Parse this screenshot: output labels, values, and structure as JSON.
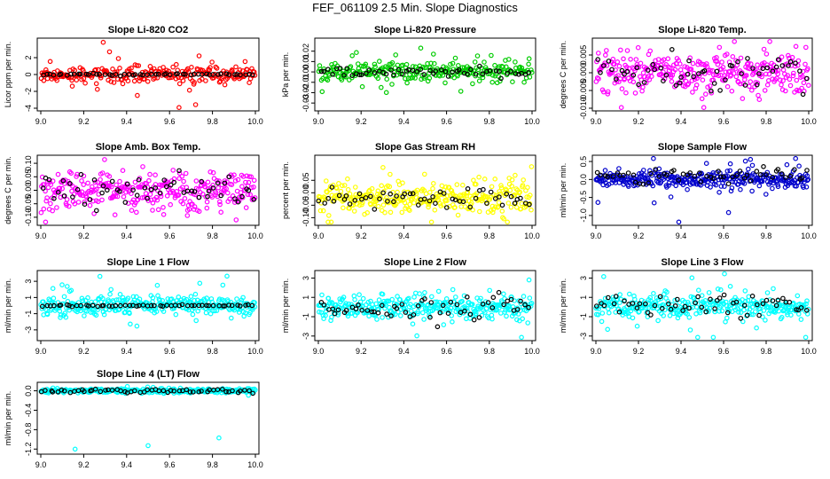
{
  "page_title": "FEF_061109  2.5 Min. Slope Diagnostics",
  "chart_data": [
    {
      "type": "scatter",
      "title": "Slope Li-820 CO2",
      "ylabel": "Licor ppm per min.",
      "xlim": [
        9.0,
        10.0
      ],
      "ylim": [
        -4,
        4
      ],
      "xticks": [
        9.0,
        9.2,
        9.4,
        9.6,
        9.8,
        10.0
      ],
      "xticklabels": [
        "9.0",
        "9.2",
        "9.4",
        "9.6",
        "9.8",
        "10.0"
      ],
      "yticks": [
        -4,
        -2,
        0,
        2
      ],
      "yticklabels": [
        "-4",
        "-2",
        "0",
        "2"
      ],
      "series": [
        {
          "color": "#ff0000",
          "center": 0.0,
          "spread": 0.45,
          "outlier_spread": 1.8,
          "count": 260
        },
        {
          "color": "#000000",
          "center": 0.0,
          "spread": 0.04,
          "outlier_spread": 0.1,
          "count": 55
        }
      ]
    },
    {
      "type": "scatter",
      "title": "Slope Li-820 Pressure",
      "ylabel": "kPa per min.",
      "xlim": [
        9.0,
        10.0
      ],
      "ylim": [
        -0.035,
        0.03
      ],
      "xticks": [
        9.0,
        9.2,
        9.4,
        9.6,
        9.8,
        10.0
      ],
      "xticklabels": [
        "9.0",
        "9.2",
        "9.4",
        "9.6",
        "9.8",
        "10.0"
      ],
      "yticks": [
        -0.03,
        -0.02,
        -0.01,
        0.0,
        0.01,
        0.02
      ],
      "yticklabels": [
        "-0.03",
        "-0.02",
        "-0.01",
        "0.00",
        "0.01",
        "0.02"
      ],
      "series": [
        {
          "color": "#00cc00",
          "center": 0.0,
          "spread": 0.005,
          "outlier_spread": 0.012,
          "count": 260
        },
        {
          "color": "#000000",
          "center": 0.0,
          "spread": 0.002,
          "outlier_spread": 0.005,
          "count": 55
        }
      ]
    },
    {
      "type": "scatter",
      "title": "Slope Li-820 Temp.",
      "ylabel": "degrees C per min.",
      "xlim": [
        9.0,
        10.0
      ],
      "ylim": [
        -0.01,
        0.009
      ],
      "xticks": [
        9.0,
        9.2,
        9.4,
        9.6,
        9.8,
        10.0
      ],
      "xticklabels": [
        "9.0",
        "9.2",
        "9.4",
        "9.6",
        "9.8",
        "10.0"
      ],
      "yticks": [
        -0.01,
        -0.005,
        0.0,
        0.005
      ],
      "yticklabels": [
        "-0.010",
        "-0.005",
        "0.000",
        "0.005"
      ],
      "series": [
        {
          "color": "#ff00ff",
          "center": 0.0,
          "spread": 0.003,
          "outlier_spread": 0.005,
          "count": 320
        },
        {
          "color": "#000000",
          "center": 0.0,
          "spread": 0.0025,
          "outlier_spread": 0.004,
          "count": 55
        }
      ]
    },
    {
      "type": "scatter",
      "title": "Slope Amb. Box Temp.",
      "ylabel": "degrees C per min.",
      "xlim": [
        9.0,
        10.0
      ],
      "ylim": [
        -0.12,
        0.12
      ],
      "xticks": [
        9.0,
        9.2,
        9.4,
        9.6,
        9.8,
        10.0
      ],
      "xticklabels": [
        "9.0",
        "9.2",
        "9.4",
        "9.6",
        "9.8",
        "10.0"
      ],
      "yticks": [
        -0.1,
        -0.05,
        0.0,
        0.05,
        0.1
      ],
      "yticklabels": [
        "-0.10",
        "-0.05",
        "0.00",
        "0.05",
        "0.10"
      ],
      "series": [
        {
          "color": "#ff00ff",
          "center": 0.0,
          "spread": 0.035,
          "outlier_spread": 0.06,
          "count": 320
        },
        {
          "color": "#000000",
          "center": 0.0,
          "spread": 0.03,
          "outlier_spread": 0.05,
          "count": 55
        }
      ]
    },
    {
      "type": "scatter",
      "title": "Slope Gas Stream RH",
      "ylabel": "percent per min.",
      "xlim": [
        9.0,
        10.0
      ],
      "ylim": [
        -0.12,
        0.14
      ],
      "xticks": [
        9.0,
        9.2,
        9.4,
        9.6,
        9.8,
        10.0
      ],
      "xticklabels": [
        "9.0",
        "9.2",
        "9.4",
        "9.6",
        "9.8",
        "10.0"
      ],
      "yticks": [
        -0.1,
        -0.05,
        0.0,
        0.05
      ],
      "yticklabels": [
        "-0.10",
        "-0.05",
        "0.00",
        "0.05"
      ],
      "series": [
        {
          "color": "#ffff00",
          "center": -0.02,
          "spread": 0.03,
          "outlier_spread": 0.07,
          "count": 320
        },
        {
          "color": "#000000",
          "center": -0.02,
          "spread": 0.025,
          "outlier_spread": 0.05,
          "count": 55
        }
      ]
    },
    {
      "type": "scatter",
      "title": "Slope Sample Flow",
      "ylabel": "ml/min per min.",
      "xlim": [
        9.0,
        10.0
      ],
      "ylim": [
        -1.2,
        0.6
      ],
      "xticks": [
        9.0,
        9.2,
        9.4,
        9.6,
        9.8,
        10.0
      ],
      "xticklabels": [
        "9.0",
        "9.2",
        "9.4",
        "9.6",
        "9.8",
        "10.0"
      ],
      "yticks": [
        -1.0,
        -0.5,
        0.0,
        0.5
      ],
      "yticklabels": [
        "-1.0",
        "-0.5",
        "0.0",
        "0.5"
      ],
      "series": [
        {
          "color": "#0000cc",
          "center": 0.0,
          "spread": 0.1,
          "outlier_spread": 0.5,
          "count": 320
        },
        {
          "color": "#000000",
          "center": 0.1,
          "spread": 0.12,
          "outlier_spread": 0.2,
          "count": 55
        }
      ]
    },
    {
      "type": "scatter",
      "title": "Slope Line 1 Flow",
      "ylabel": "ml/min per min.",
      "xlim": [
        9.0,
        10.0
      ],
      "ylim": [
        -4,
        4
      ],
      "xticks": [
        9.0,
        9.2,
        9.4,
        9.6,
        9.8,
        10.0
      ],
      "xticklabels": [
        "9.0",
        "9.2",
        "9.4",
        "9.6",
        "9.8",
        "10.0"
      ],
      "yticks": [
        -3,
        -1,
        1,
        3
      ],
      "yticklabels": [
        "-3",
        "-1",
        "1",
        "3"
      ],
      "series": [
        {
          "color": "#00ffff",
          "center": 0.0,
          "spread": 0.6,
          "outlier_spread": 1.5,
          "count": 320
        },
        {
          "color": "#000000",
          "center": 0.0,
          "spread": 0.05,
          "outlier_spread": 0.1,
          "count": 55
        }
      ]
    },
    {
      "type": "scatter",
      "title": "Slope Line 2 Flow",
      "ylabel": "ml/min per min.",
      "xlim": [
        9.0,
        10.0
      ],
      "ylim": [
        -3.2,
        3.5
      ],
      "xticks": [
        9.0,
        9.2,
        9.4,
        9.6,
        9.8,
        10.0
      ],
      "xticklabels": [
        "9.0",
        "9.2",
        "9.4",
        "9.6",
        "9.8",
        "10.0"
      ],
      "yticks": [
        -3,
        -1,
        1,
        3
      ],
      "yticklabels": [
        "-3",
        "-1",
        "1",
        "3"
      ],
      "series": [
        {
          "color": "#00ffff",
          "center": 0.0,
          "spread": 0.6,
          "outlier_spread": 1.5,
          "count": 320
        },
        {
          "color": "#000000",
          "center": 0.0,
          "spread": 0.5,
          "outlier_spread": 1.0,
          "count": 55
        }
      ]
    },
    {
      "type": "scatter",
      "title": "Slope Line 3 Flow",
      "ylabel": "ml/min per min.",
      "xlim": [
        9.0,
        10.0
      ],
      "ylim": [
        -3.2,
        3.5
      ],
      "xticks": [
        9.0,
        9.2,
        9.4,
        9.6,
        9.8,
        10.0
      ],
      "xticklabels": [
        "9.0",
        "9.2",
        "9.4",
        "9.6",
        "9.8",
        "10.0"
      ],
      "yticks": [
        -3,
        -1,
        1,
        3
      ],
      "yticklabels": [
        "-3",
        "-1",
        "1",
        "3"
      ],
      "series": [
        {
          "color": "#00ffff",
          "center": 0.0,
          "spread": 0.6,
          "outlier_spread": 1.5,
          "count": 320
        },
        {
          "color": "#000000",
          "center": 0.1,
          "spread": 0.5,
          "outlier_spread": 1.0,
          "count": 55
        }
      ]
    },
    {
      "type": "scatter",
      "title": "Slope Line 4 (LT) Flow",
      "ylabel": "ml/min per min.",
      "xlim": [
        9.0,
        10.0
      ],
      "ylim": [
        -1.25,
        0.12
      ],
      "xticks": [
        9.0,
        9.2,
        9.4,
        9.6,
        9.8,
        10.0
      ],
      "xticklabels": [
        "9.0",
        "9.2",
        "9.4",
        "9.6",
        "9.8",
        "10.0"
      ],
      "yticks": [
        -1.2,
        -0.8,
        -0.4,
        0.0
      ],
      "yticklabels": [
        "-1.2",
        "-0.8",
        "-0.4",
        "0.0"
      ],
      "series": [
        {
          "color": "#00ffff",
          "center": 0.0,
          "spread": 0.02,
          "outlier_spread": 0.04,
          "count": 320
        },
        {
          "color": "#000000",
          "center": 0.0,
          "spread": 0.02,
          "outlier_spread": 0.03,
          "count": 55
        }
      ],
      "outliers": [
        {
          "x": 9.16,
          "y": -1.2,
          "color": "#00ffff"
        },
        {
          "x": 9.5,
          "y": -1.13,
          "color": "#00ffff"
        },
        {
          "x": 9.83,
          "y": -0.97,
          "color": "#00ffff"
        }
      ]
    }
  ]
}
